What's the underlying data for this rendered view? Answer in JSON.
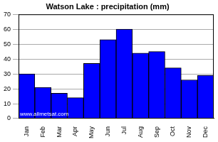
{
  "chart_data": {
    "type": "bar",
    "title": "Watson Lake : precipitation (mm)",
    "categories": [
      "Jan",
      "Feb",
      "Mar",
      "Apr",
      "May",
      "Jun",
      "Jul",
      "Aug",
      "Sep",
      "Oct",
      "Nov",
      "Dec"
    ],
    "values": [
      30,
      21,
      17,
      14,
      37,
      53,
      60,
      44,
      45,
      34,
      26,
      29
    ],
    "color": "#0000ff",
    "ylim": [
      0,
      70
    ],
    "yticks": [
      0,
      10,
      20,
      30,
      40,
      50,
      60,
      70
    ],
    "grid": true,
    "annotations": [
      "www.allmetsat.com"
    ]
  }
}
